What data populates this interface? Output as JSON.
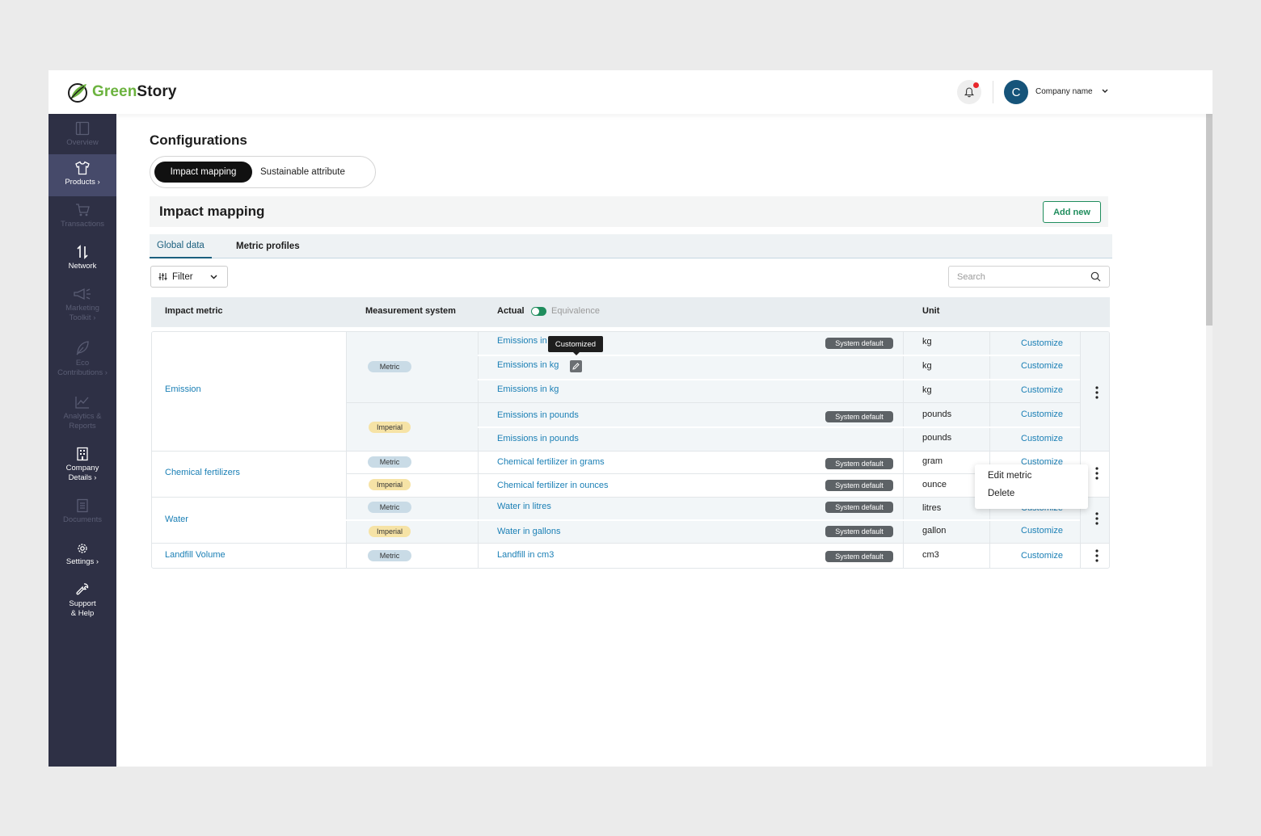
{
  "header": {
    "logo_part1": "Green",
    "logo_part2": "Story",
    "company_initial": "C",
    "company_name": "Company name"
  },
  "sidebar": {
    "items": [
      {
        "label": "Overview",
        "state": "disabled"
      },
      {
        "label": "Products ›",
        "state": "active"
      },
      {
        "label": "Transactions",
        "state": "disabled"
      },
      {
        "label": "Network",
        "state": "enabled"
      },
      {
        "label": "Marketing\nToolkit ›",
        "state": "disabled"
      },
      {
        "label": "Eco\nContributions ›",
        "state": "disabled"
      },
      {
        "label": "Analytics &\nReports",
        "state": "disabled"
      },
      {
        "label": "Company\nDetails ›",
        "state": "enabled"
      },
      {
        "label": "Documents",
        "state": "disabled"
      },
      {
        "label": "Settings ›",
        "state": "enabled"
      },
      {
        "label": "Support\n& Help",
        "state": "enabled"
      }
    ]
  },
  "page": {
    "title": "Configurations",
    "seg_tabs": [
      "Impact mapping",
      "Sustainable attribute"
    ],
    "panel_title": "Impact mapping",
    "add_new": "Add new",
    "sub_tabs": [
      "Global data",
      "Metric profiles"
    ],
    "filter_label": "Filter",
    "search_placeholder": "Search"
  },
  "table": {
    "headers": {
      "metric": "Impact metric",
      "system": "Measurement system",
      "actual": "Actual",
      "equivalence": "Equivalence",
      "unit": "Unit"
    },
    "groups": [
      {
        "name": "Emission"
      },
      {
        "name": "Chemical fertilizers"
      },
      {
        "name": "Water"
      },
      {
        "name": "Landfill Volume"
      }
    ],
    "system_labels": {
      "metric": "Metric",
      "imperial": "Imperial"
    },
    "system_default_label": "System default",
    "customize_label": "Customize",
    "rows": [
      {
        "actual": "Emissions in kg",
        "system_default": true,
        "unit": "kg"
      },
      {
        "actual": "Emissions in kg",
        "system_default": false,
        "unit": "kg"
      },
      {
        "actual": "Emissions in kg",
        "system_default": false,
        "unit": "kg"
      },
      {
        "actual": "Emissions in pounds",
        "system_default": true,
        "unit": "pounds"
      },
      {
        "actual": "Emissions in pounds",
        "system_default": false,
        "unit": "pounds"
      },
      {
        "actual": "Chemical fertilizer in grams",
        "system_default": true,
        "unit": "gram"
      },
      {
        "actual": "Chemical fertilizer in ounces",
        "system_default": true,
        "unit": "ounce"
      },
      {
        "actual": "Water in litres",
        "system_default": true,
        "unit": "litres"
      },
      {
        "actual": "Water in gallons",
        "system_default": true,
        "unit": "gallon"
      },
      {
        "actual": "Landfill in cm3",
        "system_default": true,
        "unit": "cm3"
      }
    ]
  },
  "tooltip": "Customized",
  "context_menu": [
    "Edit metric",
    "Delete"
  ],
  "colors": {
    "sidebar_bg": "#2e3045",
    "sidebar_active": "#464a6a",
    "link": "#1a7fb5",
    "accent_green": "#1f8d5d",
    "notification": "#e8262b"
  }
}
